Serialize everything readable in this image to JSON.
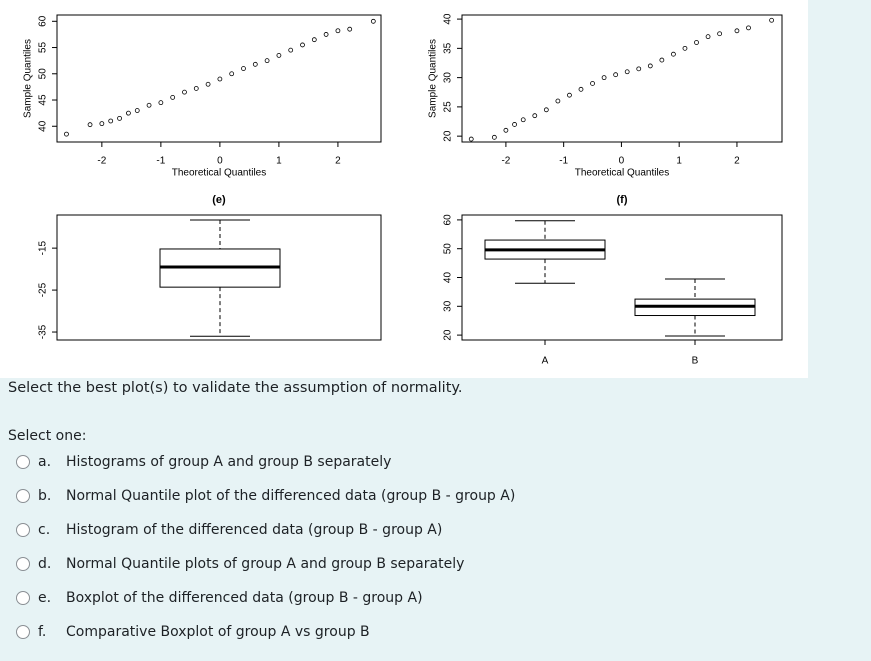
{
  "qq_plots": [
    {
      "x": [
        -2.6,
        -2.2,
        -2.0,
        -1.85,
        -1.7,
        -1.55,
        -1.4,
        -1.2,
        -1.0,
        -0.8,
        -0.6,
        -0.4,
        -0.2,
        0,
        0.2,
        0.4,
        0.6,
        0.8,
        1.0,
        1.2,
        1.4,
        1.6,
        1.8,
        2.0,
        2.2,
        2.6
      ],
      "y": [
        38.5,
        40.3,
        40.5,
        41,
        41.5,
        42.5,
        43,
        44,
        44.5,
        45.5,
        46.5,
        47.2,
        48,
        49,
        50,
        51,
        51.8,
        52.5,
        53.5,
        54.5,
        55.5,
        56.5,
        57.5,
        58.2,
        58.5,
        60
      ],
      "xlim": [
        -2.76,
        2.73
      ],
      "ylim": [
        37.0,
        61.2
      ],
      "xticks": [
        -2,
        -1,
        0,
        1,
        2
      ],
      "yticks": [
        40,
        45,
        50,
        55,
        60
      ],
      "xlabel": "Theoretical Quantiles",
      "ylabel": "Sample Quantiles"
    },
    {
      "x": [
        -2.6,
        -2.2,
        -2.0,
        -1.85,
        -1.7,
        -1.5,
        -1.3,
        -1.1,
        -0.9,
        -0.7,
        -0.5,
        -0.3,
        -0.1,
        0.1,
        0.3,
        0.5,
        0.7,
        0.9,
        1.1,
        1.3,
        1.5,
        1.7,
        2.0,
        2.2,
        2.6
      ],
      "y": [
        19.5,
        19.8,
        21,
        22,
        22.8,
        23.5,
        24.5,
        26,
        27,
        28,
        29,
        30,
        30.5,
        31,
        31.5,
        32,
        33,
        34,
        35,
        36,
        37,
        37.5,
        38,
        38.5,
        39.8
      ],
      "xlim": [
        -2.76,
        2.78
      ],
      "ylim": [
        19.0,
        40.7
      ],
      "xticks": [
        -2,
        -1,
        0,
        1,
        2
      ],
      "yticks": [
        20,
        25,
        30,
        35,
        40
      ],
      "xlabel": "Theoretical Quantiles",
      "ylabel": "Sample Quantiles"
    }
  ],
  "box_plots": [
    {
      "title": "(e)",
      "ylim": [
        -36.9,
        -7.1
      ],
      "yticks": [
        -15,
        -25,
        -35
      ],
      "boxes": [
        {
          "whisker_low": -36,
          "q1": -24.3,
          "median": -19.5,
          "q3": -15.2,
          "whisker_high": -8.3
        }
      ]
    },
    {
      "title": "(f)",
      "ylim": [
        18.3,
        61.7
      ],
      "yticks": [
        20,
        30,
        40,
        50,
        60
      ],
      "categories": [
        "A",
        "B"
      ],
      "boxes": [
        {
          "whisker_low": 38,
          "q1": 46.4,
          "median": 49.6,
          "q3": 53,
          "whisker_high": 59.7
        },
        {
          "whisker_low": 19.7,
          "q1": 26.8,
          "median": 30,
          "q3": 32.5,
          "whisker_high": 39.5
        }
      ]
    }
  ],
  "question": "Select the best plot(s) to validate the assumption of normality.",
  "prompt": "Select one:",
  "options": [
    {
      "letter": "a.",
      "text": "Histograms of group A and group B separately"
    },
    {
      "letter": "b.",
      "text": "Normal Quantile plot of the differenced data (group B - group A)"
    },
    {
      "letter": "c.",
      "text": "Histogram of the differenced data (group B - group A)"
    },
    {
      "letter": "d.",
      "text": "Normal Quantile plots of group A and group B separately"
    },
    {
      "letter": "e.",
      "text": "Boxplot of the differenced data (group B - group A)"
    },
    {
      "letter": "f.",
      "text": "Comparative Boxplot of group A vs group B"
    }
  ]
}
